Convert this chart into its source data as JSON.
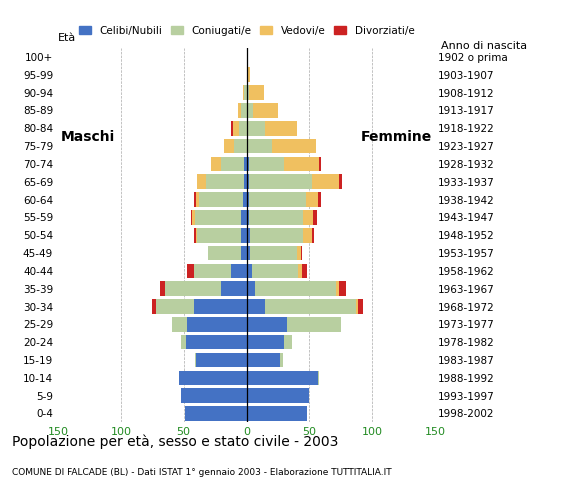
{
  "age_groups": [
    "0-4",
    "5-9",
    "10-14",
    "15-19",
    "20-24",
    "25-29",
    "30-34",
    "35-39",
    "40-44",
    "45-49",
    "50-54",
    "55-59",
    "60-64",
    "65-69",
    "70-74",
    "75-79",
    "80-84",
    "85-89",
    "90-94",
    "95-99",
    "100+"
  ],
  "birth_years": [
    "1998-2002",
    "1993-1997",
    "1988-1992",
    "1983-1987",
    "1978-1982",
    "1973-1977",
    "1968-1972",
    "1963-1967",
    "1958-1962",
    "1953-1957",
    "1948-1952",
    "1943-1947",
    "1938-1942",
    "1933-1937",
    "1928-1932",
    "1923-1927",
    "1918-1922",
    "1913-1917",
    "1908-1912",
    "1903-1907",
    "1902 o prima"
  ],
  "male": {
    "celibi": [
      49,
      52,
      54,
      40,
      48,
      47,
      42,
      20,
      12,
      4,
      4,
      4,
      3,
      2,
      2,
      0,
      0,
      0,
      0,
      0,
      0
    ],
    "coniugati": [
      0,
      0,
      0,
      1,
      4,
      12,
      30,
      45,
      30,
      27,
      35,
      37,
      35,
      30,
      18,
      10,
      6,
      4,
      2,
      0,
      0
    ],
    "vedovi": [
      0,
      0,
      0,
      0,
      0,
      0,
      0,
      0,
      0,
      0,
      1,
      2,
      2,
      7,
      8,
      8,
      5,
      3,
      1,
      0,
      0
    ],
    "divorziati": [
      0,
      0,
      0,
      0,
      0,
      0,
      3,
      4,
      5,
      0,
      2,
      1,
      2,
      0,
      0,
      0,
      1,
      0,
      0,
      0,
      0
    ]
  },
  "female": {
    "celibi": [
      48,
      50,
      57,
      27,
      30,
      32,
      15,
      7,
      4,
      3,
      3,
      2,
      2,
      2,
      2,
      0,
      1,
      0,
      0,
      0,
      0
    ],
    "coniugati": [
      0,
      0,
      1,
      2,
      6,
      43,
      72,
      64,
      37,
      37,
      42,
      43,
      45,
      50,
      28,
      20,
      14,
      5,
      2,
      0,
      0
    ],
    "vedovi": [
      0,
      0,
      0,
      0,
      0,
      0,
      2,
      3,
      3,
      3,
      7,
      8,
      10,
      22,
      28,
      35,
      25,
      20,
      12,
      3,
      0
    ],
    "divorziati": [
      0,
      0,
      0,
      0,
      0,
      0,
      4,
      5,
      4,
      1,
      2,
      3,
      2,
      2,
      1,
      0,
      0,
      0,
      0,
      0,
      0
    ]
  },
  "colors": {
    "celibi": "#4472c4",
    "coniugati": "#b8cfa0",
    "vedovi": "#f0c060",
    "divorziati": "#cc2222"
  },
  "xlim": 150,
  "title": "Popolazione per età, sesso e stato civile - 2003",
  "subtitle": "COMUNE DI FALCADE (BL) - Dati ISTAT 1° gennaio 2003 - Elaborazione TUTTITALIA.IT",
  "legend_labels": [
    "Celibi/Nubili",
    "Coniugati/e",
    "Vedovi/e",
    "Divorziati/e"
  ],
  "label_eta": "Età",
  "label_anno": "Anno di nascita",
  "label_maschi": "Maschi",
  "label_femmine": "Femmine"
}
